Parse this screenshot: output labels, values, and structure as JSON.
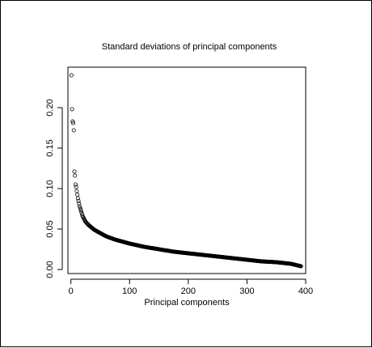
{
  "chart_data": {
    "type": "scatter",
    "title": "Standard deviations of principal components",
    "xlabel": "Principal components",
    "ylabel": "",
    "xlim": [
      -5,
      400
    ],
    "ylim": [
      -0.005,
      0.25
    ],
    "xticks": [
      0,
      100,
      200,
      300,
      400
    ],
    "yticks": [
      0.0,
      0.05,
      0.1,
      0.15,
      0.2
    ],
    "ytick_labels": [
      "0.00",
      "0.05",
      "0.10",
      "0.15",
      "0.20"
    ],
    "xtick_labels": [
      "0",
      "100",
      "200",
      "300",
      "400"
    ],
    "grid": false,
    "legend": "none",
    "marker": "open-circle",
    "n_points": 392,
    "points": [
      [
        1,
        0.24
      ],
      [
        2,
        0.198
      ],
      [
        3,
        0.183
      ],
      [
        4,
        0.181
      ],
      [
        5,
        0.172
      ],
      [
        6,
        0.121
      ],
      [
        7,
        0.116
      ],
      [
        8,
        0.105
      ],
      [
        9,
        0.102
      ],
      [
        10,
        0.097
      ],
      [
        12,
        0.088
      ],
      [
        15,
        0.078
      ],
      [
        20,
        0.066
      ],
      [
        25,
        0.059
      ],
      [
        30,
        0.055
      ],
      [
        40,
        0.049
      ],
      [
        50,
        0.045
      ],
      [
        60,
        0.041
      ],
      [
        75,
        0.037
      ],
      [
        100,
        0.032
      ],
      [
        125,
        0.028
      ],
      [
        150,
        0.025
      ],
      [
        175,
        0.022
      ],
      [
        200,
        0.02
      ],
      [
        225,
        0.018
      ],
      [
        250,
        0.016
      ],
      [
        275,
        0.014
      ],
      [
        300,
        0.012
      ],
      [
        325,
        0.01
      ],
      [
        350,
        0.009
      ],
      [
        375,
        0.007
      ],
      [
        392,
        0.004
      ]
    ]
  }
}
